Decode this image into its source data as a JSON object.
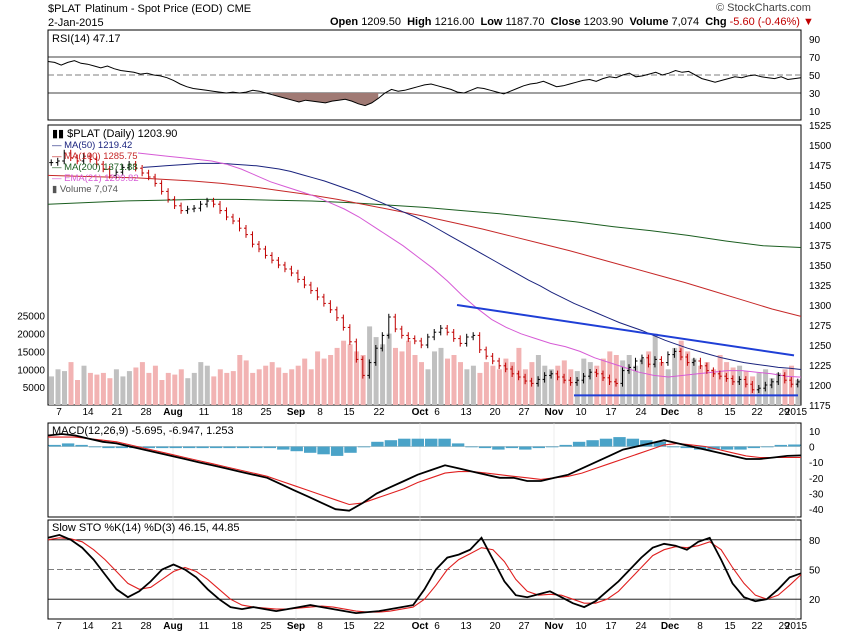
{
  "header": {
    "symbol": "$PLAT",
    "description": "Platinum - Spot Price (EOD)",
    "exchange": "CME",
    "date": "2-Jan-2015",
    "brand": "© StockCharts.com",
    "open_label": "Open",
    "open": "1209.50",
    "high_label": "High",
    "high": "1216.00",
    "low_label": "Low",
    "low": "1187.70",
    "close_label": "Close",
    "close": "1203.90",
    "volume_label": "Volume",
    "volume": "7,074",
    "chg_label": "Chg",
    "chg": "-5.60 (-0.46%)"
  },
  "colors": {
    "ma50": "#1a237e",
    "ma100": "#c62828",
    "ma200": "#1b5e20",
    "ema21": "#d65bd6",
    "trendline": "#1f3fd6",
    "vol_up": "#f2b3b3",
    "vol_down": "#c0c0c0",
    "macd_hist": "#4aa3c8",
    "signal": "#e02020"
  },
  "chart_data": {
    "type": "candlestick",
    "x_labels": [
      "7",
      "14",
      "21",
      "28",
      "Aug",
      "11",
      "18",
      "25",
      "Sep",
      "8",
      "15",
      "22",
      "Oct",
      "6",
      "13",
      "20",
      "27",
      "Nov",
      "10",
      "17",
      "24",
      "Dec",
      "8",
      "15",
      "22",
      "29",
      "2015"
    ],
    "rsi": {
      "label": "RSI(14) 47.17",
      "ticks": [
        "90",
        "70",
        "50",
        "30",
        "10"
      ],
      "overbought": 70,
      "oversold": 30,
      "values": [
        65,
        64,
        61,
        64,
        66,
        63,
        62,
        60,
        58,
        60,
        57,
        55,
        54,
        53,
        51,
        52,
        50,
        49,
        47,
        44,
        40,
        37,
        35,
        34,
        33,
        32,
        31,
        30,
        31,
        30,
        31,
        33,
        32,
        30,
        28,
        26,
        24,
        22,
        20,
        22,
        21,
        20,
        19,
        21,
        22,
        23,
        21,
        18,
        16,
        19,
        24,
        30,
        34,
        32,
        33,
        35,
        37,
        39,
        40,
        38,
        36,
        34,
        31,
        30,
        33,
        36,
        35,
        33,
        31,
        29,
        32,
        35,
        38,
        40,
        41,
        43,
        40,
        37,
        38,
        40,
        42,
        44,
        45,
        43,
        46,
        48,
        47,
        50,
        52,
        48,
        49,
        51,
        53,
        50,
        52,
        55,
        53,
        54,
        50,
        46,
        44,
        42,
        44,
        46,
        48,
        47,
        49,
        50,
        48,
        47,
        46,
        48,
        45,
        46,
        47
      ],
      "current": 47.17
    },
    "price": {
      "title": "$PLAT (Daily) 1203.90",
      "y_ticks": [
        "1525",
        "1500",
        "1475",
        "1450",
        "1425",
        "1400",
        "1375",
        "1350",
        "1325",
        "1300",
        "1275",
        "1250",
        "1225",
        "1200",
        "1175"
      ],
      "ylim": [
        1175,
        1525
      ],
      "close": [
        1478,
        1480,
        1490,
        1484,
        1480,
        1486,
        1482,
        1476,
        1470,
        1462,
        1466,
        1472,
        1476,
        1471,
        1465,
        1460,
        1452,
        1442,
        1432,
        1424,
        1418,
        1420,
        1421,
        1426,
        1430,
        1426,
        1418,
        1410,
        1405,
        1396,
        1388,
        1376,
        1370,
        1362,
        1356,
        1350,
        1345,
        1340,
        1332,
        1325,
        1318,
        1310,
        1302,
        1294,
        1284,
        1272,
        1254,
        1232,
        1212,
        1228,
        1246,
        1262,
        1285,
        1270,
        1262,
        1258,
        1255,
        1250,
        1260,
        1266,
        1271,
        1266,
        1258,
        1252,
        1260,
        1262,
        1244,
        1236,
        1230,
        1224,
        1220,
        1214,
        1210,
        1205,
        1202,
        1207,
        1212,
        1214,
        1210,
        1206,
        1203,
        1206,
        1211,
        1216,
        1214,
        1209,
        1204,
        1202,
        1218,
        1222,
        1230,
        1234,
        1226,
        1232,
        1228,
        1238,
        1242,
        1235,
        1228,
        1230,
        1224,
        1218,
        1214,
        1211,
        1208,
        1204,
        1207,
        1201,
        1194,
        1196,
        1200,
        1204,
        1212,
        1206,
        1201,
        1203.9
      ],
      "ma50_label": "MA(50) 1219.42",
      "ma100_label": "MA(100) 1285.75",
      "ma200_label": "MA(200) 1371.88",
      "ema21_label": "EMA(21) 1209.82",
      "volume_label": "Volume 7,074",
      "ma50": [
        1472,
        1473,
        1474,
        1475,
        1476,
        1477,
        1477,
        1477,
        1476,
        1475,
        1474,
        1472,
        1470,
        1467,
        1463,
        1459,
        1455,
        1450,
        1445,
        1440,
        1434,
        1428,
        1422,
        1416,
        1410,
        1403,
        1395,
        1387,
        1379,
        1371,
        1363,
        1355,
        1347,
        1339,
        1331,
        1324,
        1316,
        1309,
        1302,
        1296,
        1290,
        1284,
        1278,
        1273,
        1268,
        1262,
        1256,
        1251,
        1246,
        1242,
        1238,
        1234,
        1231,
        1228,
        1226,
        1224,
        1222,
        1221,
        1219.42
      ],
      "ma100": [
        1462,
        1461,
        1460,
        1459,
        1457,
        1455,
        1452,
        1448,
        1443,
        1438,
        1432,
        1425,
        1418,
        1411,
        1403,
        1395,
        1386,
        1377,
        1368,
        1358,
        1348,
        1338,
        1328,
        1317,
        1306,
        1295,
        1285.75
      ],
      "ma200": [
        1426,
        1428,
        1430,
        1431,
        1432,
        1432,
        1431,
        1430,
        1428,
        1425,
        1422,
        1418,
        1414,
        1409,
        1404,
        1398,
        1393,
        1387,
        1380,
        1374,
        1371.88
      ],
      "ema21": [
        1490,
        1488,
        1486,
        1484,
        1482,
        1480,
        1476,
        1470,
        1462,
        1454,
        1448,
        1442,
        1436,
        1428,
        1420,
        1410,
        1398,
        1386,
        1374,
        1360,
        1346,
        1330,
        1312,
        1296,
        1282,
        1272,
        1264,
        1258,
        1252,
        1248,
        1242,
        1234,
        1228,
        1222,
        1216,
        1212,
        1210,
        1212,
        1214,
        1216,
        1218,
        1218,
        1216,
        1214,
        1211,
        1209.82
      ],
      "trendline_upper": [
        1300,
        1237
      ],
      "trendline_lower": [
        1187,
        1187
      ]
    },
    "volume": {
      "y_ticks": [
        "25000",
        "20000",
        "15000",
        "10000",
        "5000"
      ],
      "ylim": [
        0,
        28000
      ],
      "values": [
        8000,
        10000,
        9500,
        12000,
        7000,
        11000,
        9000,
        8500,
        9000,
        7500,
        10000,
        8000,
        9500,
        10500,
        12000,
        9000,
        11000,
        7000,
        9000,
        8500,
        10000,
        7500,
        9000,
        12000,
        11000,
        8000,
        10000,
        9000,
        9500,
        14000,
        12500,
        9000,
        10000,
        11000,
        12000,
        10500,
        9000,
        10000,
        11000,
        13000,
        10000,
        15000,
        13000,
        14000,
        16000,
        18000,
        17000,
        15000,
        14000,
        22000,
        19000,
        17000,
        20000,
        16000,
        15000,
        18000,
        14000,
        12000,
        10000,
        15000,
        16000,
        13000,
        14000,
        12000,
        10000,
        11000,
        9000,
        12000,
        11000,
        10000,
        13000,
        12000,
        16000,
        10000,
        12000,
        14000,
        11000,
        10000,
        11000,
        12500,
        10000,
        9500,
        13000,
        12000,
        11000,
        13000,
        15000,
        14000,
        12500,
        14000,
        11000,
        13000,
        15000,
        20000,
        12000,
        10000,
        16000,
        18000,
        15000,
        13000,
        11000,
        12000,
        10000,
        14000,
        12000,
        10500,
        11000,
        9500,
        8000,
        9000,
        10000,
        7500,
        9000,
        10000,
        11000,
        7074
      ]
    },
    "macd": {
      "label": "MACD(12,26,9) -5.695, -6.947, 1.253",
      "y_ticks": [
        "10",
        "0",
        "-10",
        "-20",
        "-30",
        "-40"
      ],
      "ylim": [
        -45,
        15
      ],
      "macd": [
        7,
        8,
        7,
        5,
        3,
        2,
        0,
        -2,
        -4,
        -6,
        -8,
        -10,
        -12,
        -14,
        -16,
        -18,
        -20,
        -24,
        -28,
        -32,
        -36,
        -40,
        -41,
        -36,
        -30,
        -26,
        -22,
        -18,
        -15,
        -12,
        -14,
        -16,
        -18,
        -20,
        -20,
        -22,
        -22,
        -20,
        -18,
        -14,
        -10,
        -6,
        -2,
        0,
        2,
        4,
        2,
        0,
        -2,
        -4,
        -6,
        -8,
        -8,
        -7,
        -6,
        -5.695
      ],
      "signal": [
        6,
        6,
        6,
        5,
        4,
        3,
        1,
        -1,
        -3,
        -5,
        -7,
        -9,
        -11,
        -13,
        -15,
        -17,
        -19,
        -22,
        -25,
        -28,
        -31,
        -34,
        -37,
        -36,
        -33,
        -30,
        -27,
        -23,
        -20,
        -17,
        -16,
        -16,
        -17,
        -18,
        -19,
        -20,
        -21,
        -20,
        -19,
        -17,
        -14,
        -11,
        -8,
        -5,
        -2,
        1,
        2,
        1,
        0,
        -2,
        -4,
        -6,
        -7,
        -7,
        -7,
        -6.947
      ],
      "histogram": [
        1,
        2,
        1,
        0,
        -1,
        -1,
        -1,
        -1,
        -1,
        -1,
        -1,
        -1,
        -1,
        -1,
        -1,
        -1,
        -1,
        -2,
        -3,
        -4,
        -5,
        -6,
        -4,
        0,
        3,
        4,
        5,
        5,
        5,
        5,
        2,
        0,
        -1,
        -2,
        -1,
        -2,
        -1,
        0,
        1,
        3,
        4,
        5,
        6,
        5,
        4,
        3,
        0,
        -1,
        -2,
        -2,
        -2,
        -2,
        -1,
        0,
        1,
        1.253
      ]
    },
    "stochastic": {
      "label": "Slow STO %K(14) %D(3) 46.15, 44.85",
      "y_ticks": [
        "80",
        "50",
        "20"
      ],
      "ylim": [
        0,
        100
      ],
      "k": [
        82,
        85,
        80,
        72,
        60,
        45,
        30,
        22,
        28,
        38,
        50,
        55,
        50,
        42,
        30,
        20,
        12,
        10,
        12,
        10,
        8,
        10,
        12,
        14,
        12,
        10,
        8,
        6,
        7,
        8,
        10,
        12,
        14,
        30,
        50,
        62,
        65,
        70,
        82,
        60,
        38,
        24,
        22,
        25,
        28,
        22,
        16,
        12,
        18,
        28,
        38,
        50,
        62,
        72,
        76,
        74,
        70,
        78,
        82,
        60,
        36,
        22,
        18,
        20,
        30,
        42,
        46.15
      ],
      "d": [
        80,
        82,
        81,
        78,
        70,
        60,
        48,
        36,
        30,
        32,
        40,
        48,
        52,
        48,
        40,
        30,
        20,
        14,
        12,
        11,
        10,
        10,
        11,
        12,
        13,
        12,
        10,
        8,
        7,
        7,
        8,
        10,
        12,
        20,
        34,
        50,
        60,
        66,
        72,
        70,
        58,
        40,
        28,
        24,
        25,
        24,
        20,
        16,
        16,
        20,
        28,
        40,
        52,
        64,
        70,
        73,
        72,
        74,
        78,
        70,
        52,
        36,
        24,
        20,
        24,
        34,
        44.85
      ]
    }
  }
}
